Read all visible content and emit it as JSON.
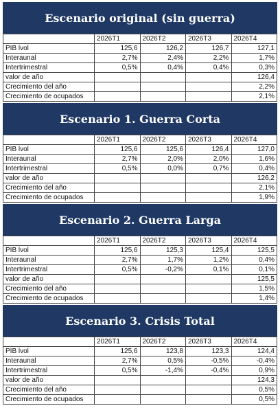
{
  "sections": [
    {
      "title": "Escenario original (sin guerra)",
      "header": [
        "2026T1",
        "2026T2",
        "2026T3",
        "2026T4"
      ],
      "rows": [
        {
          "label": "PIB lvol",
          "cells": [
            "125,6",
            "126,2",
            "126,7",
            "127,1"
          ]
        },
        {
          "label": "Interaunal",
          "cells": [
            "2,7%",
            "2,4%",
            "2,2%",
            "1,7%"
          ]
        },
        {
          "label": "Intertrimestral",
          "cells": [
            "0,5%",
            "0,4%",
            "0,4%",
            "0,3%"
          ]
        },
        {
          "label": "valor de año",
          "cells": [
            null,
            null,
            null,
            "126,4"
          ]
        },
        {
          "label": "Crecimiento del año",
          "cells": [
            null,
            null,
            null,
            "2,2%"
          ]
        },
        {
          "label": "Crecimiento de ocupados",
          "cells": [
            null,
            null,
            null,
            "2,1%"
          ]
        }
      ]
    },
    {
      "title": "Escenario 1. Guerra Corta",
      "header": [
        "2026T1",
        "2026T2",
        "2026T3",
        "2026T4"
      ],
      "rows": [
        {
          "label": "PIB lvol",
          "cells": [
            "125,6",
            "125,6",
            "126,4",
            "127,0"
          ]
        },
        {
          "label": "Interaunal",
          "cells": [
            "2,7%",
            "2,0%",
            "2,0%",
            "1,6%"
          ]
        },
        {
          "label": "Intertrimestral",
          "cells": [
            "0,5%",
            "0,0%",
            "0,7%",
            "0,4%"
          ]
        },
        {
          "label": "valor de año",
          "cells": [
            null,
            null,
            null,
            "126,2"
          ]
        },
        {
          "label": "Crecimiento del año",
          "cells": [
            null,
            null,
            null,
            "2,1%"
          ]
        },
        {
          "label": "Crecimiento de ocupados",
          "cells": [
            null,
            null,
            null,
            "1,9%"
          ]
        }
      ]
    },
    {
      "title": "Escenario 2. Guerra Larga",
      "header": [
        "2026T1",
        "2026T2",
        "2026T3",
        "2026T4"
      ],
      "rows": [
        {
          "label": "PIB lvol",
          "cells": [
            "125,6",
            "125,3",
            "125,4",
            "125,5"
          ]
        },
        {
          "label": "Interaunal",
          "cells": [
            "2,7%",
            "1,7%",
            "1,2%",
            "0,4%"
          ]
        },
        {
          "label": "Intertrimestral",
          "cells": [
            "0,5%",
            "-0,2%",
            "0,1%",
            "0,1%"
          ]
        },
        {
          "label": "valor de año",
          "cells": [
            null,
            null,
            null,
            "125,5"
          ]
        },
        {
          "label": "Crecimiento del año",
          "cells": [
            null,
            null,
            null,
            "1,5%"
          ]
        },
        {
          "label": "Crecimiento de ocupados",
          "cells": [
            null,
            null,
            null,
            "1,4%"
          ]
        }
      ]
    },
    {
      "title": "Escenario 3. Crisis Total",
      "header": [
        "2026T1",
        "2026T2",
        "2026T3",
        "2026T4"
      ],
      "rows": [
        {
          "label": "PIB lvol",
          "cells": [
            "125,6",
            "123,8",
            "123,3",
            "124,4"
          ]
        },
        {
          "label": "Interaunal",
          "cells": [
            "2,7%",
            "0,5%",
            "-0,5%",
            "-0,4%"
          ]
        },
        {
          "label": "Intertrimestral",
          "cells": [
            "0,5%",
            "-1,4%",
            "-0,4%",
            "0,9%"
          ]
        },
        {
          "label": "valor de año",
          "cells": [
            null,
            null,
            null,
            "124,3"
          ]
        },
        {
          "label": "Crecimiento del año",
          "cells": [
            null,
            null,
            null,
            "0,5%"
          ]
        },
        {
          "label": "Crecimiento de ocupados",
          "cells": [
            null,
            null,
            null,
            "0,5%"
          ]
        }
      ]
    }
  ]
}
